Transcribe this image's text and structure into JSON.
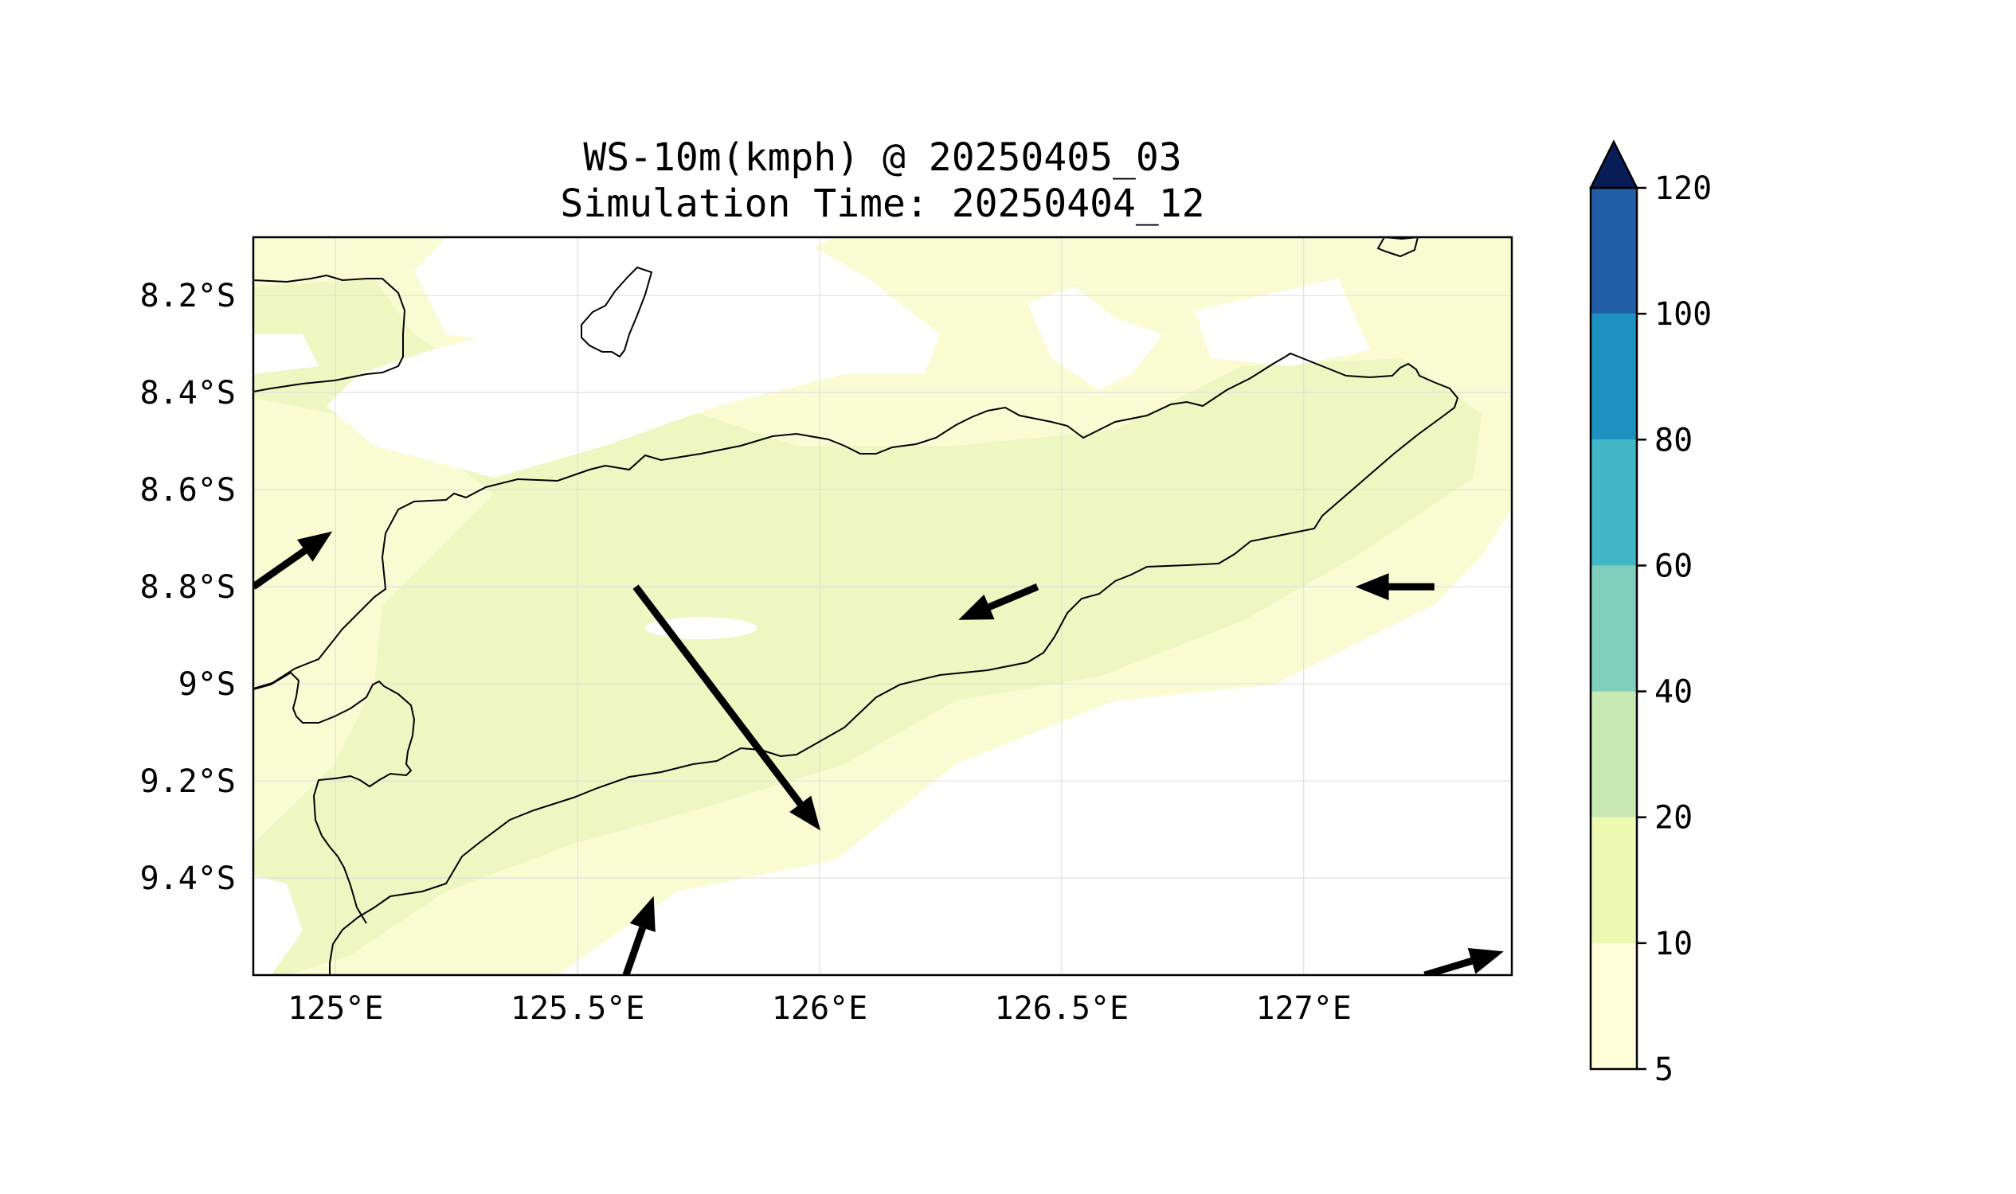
{
  "title": {
    "line1": "WS-10m(kmph) @ 20250405_03",
    "line2": "Simulation Time: 20250404_12"
  },
  "map": {
    "lon_range": [
      124.83,
      127.43
    ],
    "lat_range": [
      -9.6,
      -8.08
    ],
    "x_ticks": [
      {
        "lon": 125.0,
        "label": "125°E"
      },
      {
        "lon": 125.5,
        "label": "125.5°E"
      },
      {
        "lon": 126.0,
        "label": "126°E"
      },
      {
        "lon": 126.5,
        "label": "126.5°E"
      },
      {
        "lon": 127.0,
        "label": "127°E"
      }
    ],
    "y_ticks": [
      {
        "lat": -8.2,
        "label": "8.2°S"
      },
      {
        "lat": -8.4,
        "label": "8.4°S"
      },
      {
        "lat": -8.6,
        "label": "8.6°S"
      },
      {
        "lat": -8.8,
        "label": "8.8°S"
      },
      {
        "lat": -9.0,
        "label": "9°S"
      },
      {
        "lat": -9.2,
        "label": "9.2°S"
      },
      {
        "lat": -9.4,
        "label": "9.4°S"
      }
    ],
    "wind_vectors": [
      {
        "lon": 125.62,
        "lat": -8.8,
        "u": 1.0,
        "v": -1.32
      },
      {
        "lon": 126.45,
        "lat": -8.8,
        "u": -1.0,
        "v": -0.42
      },
      {
        "lon": 127.27,
        "lat": -8.8,
        "u": -1.0,
        "v": 0.0
      },
      {
        "lon": 124.83,
        "lat": -8.8,
        "u": 1.0,
        "v": 0.7
      },
      {
        "lon": 125.6,
        "lat": -9.6,
        "u": 0.35,
        "v": 1.0
      },
      {
        "lon": 127.25,
        "lat": -9.6,
        "u": 1.0,
        "v": 0.3
      }
    ]
  },
  "colorbar": {
    "levels": [
      "5",
      "10",
      "20",
      "40",
      "60",
      "80",
      "100",
      "120"
    ],
    "colors": [
      "#ffffd9",
      "#edf8b1",
      "#c7e9b4",
      "#7fcdbb",
      "#41b6c4",
      "#1d91c0",
      "#225ea8",
      "#0c2c84"
    ],
    "extend_color": "#081d58"
  },
  "colors": {
    "light_band": "#f7fcd0",
    "mid_band": "#eef7c0",
    "coast": "#000000",
    "grid": "#e0e0e0"
  }
}
